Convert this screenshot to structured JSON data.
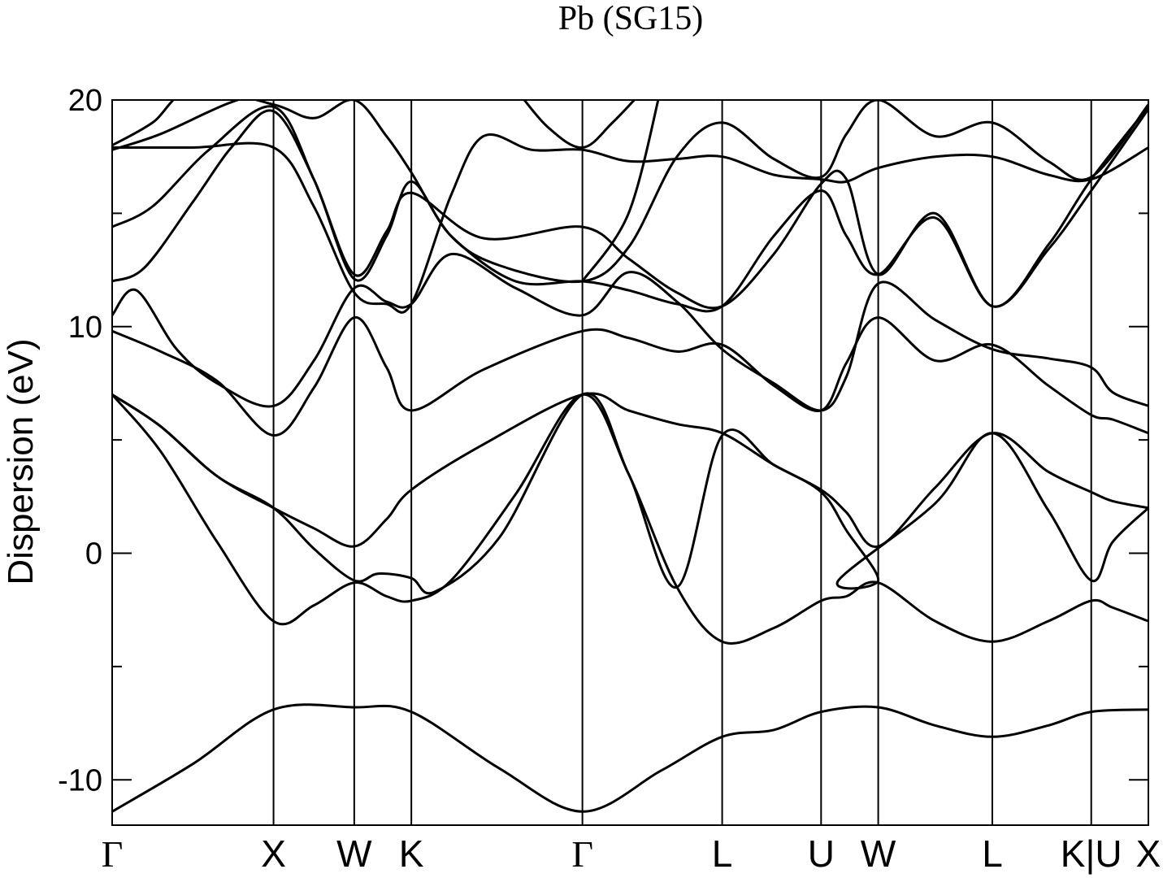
{
  "chart_data": {
    "type": "line",
    "title": "Pb (SG15)",
    "ylabel": "Dispersion (eV)",
    "xlabel": "",
    "ylim": [
      -12,
      20
    ],
    "yticks": [
      {
        "value": 20,
        "label": "20"
      },
      {
        "value": 10,
        "label": "10"
      },
      {
        "value": 0,
        "label": "0"
      },
      {
        "value": -10,
        "label": "-10"
      }
    ],
    "yminor_ticks": [
      15,
      5,
      -5
    ],
    "grid": false,
    "kpath": [
      {
        "label": "Γ",
        "pos": 0.0
      },
      {
        "label": "X",
        "pos": 1.0
      },
      {
        "label": "W",
        "pos": 1.5
      },
      {
        "label": "K",
        "pos": 1.854
      },
      {
        "label": "Γ",
        "pos": 2.914
      },
      {
        "label": "L",
        "pos": 3.78
      },
      {
        "label": "U",
        "pos": 4.393
      },
      {
        "label": "W",
        "pos": 4.747
      },
      {
        "label": "L",
        "pos": 5.454
      },
      {
        "label": "K|U",
        "pos": 6.067
      },
      {
        "label": "X",
        "pos": 6.421
      }
    ],
    "series": [
      {
        "values": [
          [
            0,
            -11.4
          ],
          [
            0.5,
            -9.3
          ],
          [
            1.0,
            -6.9
          ],
          [
            1.5,
            -6.8
          ],
          [
            1.854,
            -7.0
          ],
          [
            2.4,
            -9.5
          ],
          [
            2.914,
            -11.4
          ],
          [
            3.4,
            -9.6
          ],
          [
            3.78,
            -8.1
          ],
          [
            4.1,
            -7.8
          ],
          [
            4.393,
            -7.0
          ],
          [
            4.747,
            -6.8
          ],
          [
            5.1,
            -7.6
          ],
          [
            5.454,
            -8.1
          ],
          [
            5.8,
            -7.6
          ],
          [
            6.067,
            -7.0
          ],
          [
            6.421,
            -6.9
          ]
        ]
      },
      {
        "values": [
          [
            0,
            7.0
          ],
          [
            0.3,
            4.5
          ],
          [
            0.65,
            0.5
          ],
          [
            1.0,
            -3.0
          ],
          [
            1.25,
            -2.3
          ],
          [
            1.5,
            -1.3
          ],
          [
            1.7,
            -1.9
          ],
          [
            1.854,
            -2.1
          ],
          [
            2.1,
            -1.2
          ],
          [
            2.5,
            2.6
          ],
          [
            2.914,
            7.0
          ],
          [
            3.2,
            3.5
          ],
          [
            3.5,
            -1.5
          ],
          [
            3.78,
            -3.9
          ],
          [
            4.1,
            -3.3
          ],
          [
            4.393,
            -2.1
          ],
          [
            4.55,
            -1.9
          ],
          [
            4.747,
            -1.3
          ],
          [
            5.1,
            -3.0
          ],
          [
            5.454,
            -3.9
          ],
          [
            5.8,
            -3.0
          ],
          [
            6.067,
            -2.1
          ],
          [
            6.2,
            -2.4
          ],
          [
            6.421,
            -3.0
          ]
        ]
      },
      {
        "values": [
          [
            0,
            7.0
          ],
          [
            0.3,
            5.6
          ],
          [
            0.65,
            3.4
          ],
          [
            1.0,
            2.0
          ],
          [
            1.25,
            1.1
          ],
          [
            1.5,
            0.3
          ],
          [
            1.7,
            1.5
          ],
          [
            1.854,
            2.8
          ],
          [
            2.3,
            4.8
          ],
          [
            2.914,
            7.0
          ],
          [
            3.2,
            6.3
          ],
          [
            3.5,
            5.7
          ],
          [
            3.78,
            5.3
          ],
          [
            4.1,
            3.9
          ],
          [
            4.393,
            2.8
          ],
          [
            4.55,
            1.8
          ],
          [
            4.747,
            0.3
          ],
          [
            5.1,
            2.9
          ],
          [
            5.454,
            5.3
          ],
          [
            5.8,
            3.6
          ],
          [
            6.067,
            2.7
          ],
          [
            6.2,
            2.3
          ],
          [
            6.421,
            2.0
          ]
        ]
      },
      {
        "values": [
          [
            0,
            7.0
          ],
          [
            0.3,
            5.6
          ],
          [
            0.65,
            3.4
          ],
          [
            1.0,
            2.0
          ],
          [
            1.25,
            0.2
          ],
          [
            1.5,
            -1.2
          ],
          [
            1.65,
            -0.9
          ],
          [
            1.854,
            -1.1
          ],
          [
            2.0,
            -1.7
          ],
          [
            2.4,
            0.7
          ],
          [
            2.914,
            7.0
          ],
          [
            3.2,
            3.5
          ],
          [
            3.5,
            -1.5
          ],
          [
            3.78,
            5.2
          ],
          [
            4.1,
            3.9
          ],
          [
            4.393,
            2.7
          ],
          [
            4.55,
            1.0
          ],
          [
            4.747,
            -1.2
          ],
          [
            4.5,
            -1.2
          ],
          [
            5.1,
            2.2
          ],
          [
            5.454,
            5.3
          ],
          [
            5.8,
            1.9
          ],
          [
            6.067,
            -1.2
          ],
          [
            6.2,
            0.5
          ],
          [
            6.421,
            2.0
          ]
        ]
      },
      {
        "values": [
          [
            0,
            9.8
          ],
          [
            0.3,
            8.9
          ],
          [
            0.65,
            7.6
          ],
          [
            1.0,
            5.2
          ],
          [
            1.25,
            7.3
          ],
          [
            1.5,
            10.4
          ],
          [
            1.7,
            8.2
          ],
          [
            1.854,
            6.3
          ],
          [
            2.3,
            8.1
          ],
          [
            2.914,
            9.8
          ],
          [
            3.2,
            9.5
          ],
          [
            3.5,
            8.9
          ],
          [
            3.78,
            9.2
          ],
          [
            4.1,
            7.4
          ],
          [
            4.393,
            6.3
          ],
          [
            4.55,
            8.4
          ],
          [
            4.747,
            10.4
          ],
          [
            5.1,
            8.5
          ],
          [
            5.454,
            9.2
          ],
          [
            5.8,
            7.4
          ],
          [
            6.067,
            6.1
          ],
          [
            6.2,
            5.9
          ],
          [
            6.421,
            5.3
          ]
        ]
      },
      {
        "values": [
          [
            0,
            10.5
          ],
          [
            0.15,
            11.6
          ],
          [
            0.4,
            9.0
          ],
          [
            0.65,
            7.5
          ],
          [
            1.0,
            6.5
          ],
          [
            1.25,
            8.5
          ],
          [
            1.5,
            11.7
          ],
          [
            1.7,
            11.1
          ],
          [
            1.854,
            11.0
          ],
          [
            2.1,
            13.2
          ],
          [
            2.5,
            11.7
          ],
          [
            2.914,
            10.5
          ],
          [
            3.2,
            12.4
          ],
          [
            3.5,
            11.1
          ],
          [
            3.78,
            9.0
          ],
          [
            4.1,
            7.5
          ],
          [
            4.393,
            6.3
          ],
          [
            4.55,
            7.8
          ],
          [
            4.747,
            11.9
          ],
          [
            5.1,
            10.3
          ],
          [
            5.454,
            9.0
          ],
          [
            5.8,
            8.6
          ],
          [
            6.067,
            8.2
          ],
          [
            6.2,
            7.1
          ],
          [
            6.421,
            6.5
          ]
        ]
      },
      {
        "values": [
          [
            0,
            12.0
          ],
          [
            0.2,
            12.6
          ],
          [
            0.5,
            15.5
          ],
          [
            0.75,
            18.0
          ],
          [
            1.0,
            19.5
          ],
          [
            1.25,
            16.5
          ],
          [
            1.5,
            12.1
          ],
          [
            1.7,
            14.0
          ],
          [
            1.854,
            16.4
          ],
          [
            2.1,
            14.0
          ],
          [
            2.5,
            12.0
          ],
          [
            2.914,
            12.0
          ],
          [
            3.2,
            11.6
          ],
          [
            3.5,
            11.0
          ],
          [
            3.78,
            10.9
          ],
          [
            4.1,
            14.0
          ],
          [
            4.393,
            16.0
          ],
          [
            4.55,
            14.0
          ],
          [
            4.747,
            12.3
          ],
          [
            5.1,
            14.8
          ],
          [
            5.454,
            10.9
          ],
          [
            5.8,
            13.4
          ],
          [
            6.067,
            16.0
          ],
          [
            6.421,
            19.6
          ]
        ]
      },
      {
        "values": [
          [
            0,
            14.4
          ],
          [
            0.25,
            15.3
          ],
          [
            0.6,
            17.8
          ],
          [
            1.0,
            19.7
          ],
          [
            1.25,
            16.5
          ],
          [
            1.5,
            12.3
          ],
          [
            1.7,
            14.2
          ],
          [
            1.854,
            15.9
          ],
          [
            2.3,
            13.9
          ],
          [
            2.914,
            14.4
          ],
          [
            3.2,
            13.0
          ],
          [
            3.5,
            11.5
          ],
          [
            3.78,
            10.9
          ],
          [
            4.1,
            13.2
          ],
          [
            4.393,
            16.3
          ],
          [
            4.55,
            16.5
          ],
          [
            4.747,
            12.3
          ],
          [
            5.1,
            15.0
          ],
          [
            5.454,
            10.9
          ],
          [
            5.8,
            13.6
          ],
          [
            6.067,
            16.5
          ],
          [
            6.421,
            19.7
          ]
        ]
      },
      {
        "values": [
          [
            0,
            17.9
          ],
          [
            0.5,
            17.9
          ],
          [
            1.0,
            17.9
          ],
          [
            1.25,
            15.3
          ],
          [
            1.5,
            11.5
          ],
          [
            1.7,
            11.0
          ],
          [
            1.854,
            11.0
          ],
          [
            2.1,
            15.8
          ],
          [
            2.3,
            18.4
          ],
          [
            2.6,
            17.8
          ],
          [
            2.914,
            17.8
          ],
          [
            3.2,
            17.3
          ],
          [
            3.5,
            17.4
          ],
          [
            3.78,
            17.5
          ],
          [
            4.1,
            16.7
          ],
          [
            4.393,
            16.5
          ],
          [
            4.55,
            16.4
          ],
          [
            4.747,
            17.0
          ],
          [
            5.1,
            17.5
          ],
          [
            5.454,
            17.5
          ],
          [
            5.8,
            16.7
          ],
          [
            6.067,
            16.5
          ],
          [
            6.421,
            17.9
          ]
        ]
      },
      {
        "values": [
          [
            0,
            18.0
          ],
          [
            0.25,
            19.0
          ],
          [
            0.5,
            20.5
          ],
          [
            1.0,
            19.8
          ],
          [
            1.25,
            19.2
          ],
          [
            1.5,
            20.0
          ],
          [
            1.7,
            18.4
          ],
          [
            1.854,
            16.8
          ],
          [
            2.1,
            14.0
          ],
          [
            2.4,
            12.7
          ],
          [
            2.914,
            12.0
          ],
          [
            3.2,
            13.5
          ],
          [
            3.5,
            17.5
          ],
          [
            3.78,
            19.0
          ],
          [
            4.1,
            17.4
          ],
          [
            4.393,
            16.6
          ],
          [
            4.55,
            18.5
          ],
          [
            4.747,
            20.0
          ],
          [
            5.1,
            18.4
          ],
          [
            5.454,
            19.0
          ],
          [
            5.8,
            17.3
          ],
          [
            6.067,
            16.6
          ],
          [
            6.421,
            19.8
          ]
        ]
      },
      {
        "values": [
          [
            0,
            17.8
          ],
          [
            0.3,
            18.5
          ],
          [
            0.7,
            19.8
          ],
          [
            1.0,
            20.5
          ]
        ]
      },
      {
        "values": [
          [
            2.914,
            12.0
          ],
          [
            3.2,
            15.0
          ],
          [
            3.4,
            20.5
          ]
        ]
      },
      {
        "values": [
          [
            2.5,
            20.5
          ],
          [
            2.7,
            18.8
          ],
          [
            2.914,
            17.9
          ],
          [
            3.1,
            19.0
          ],
          [
            3.3,
            20.5
          ]
        ]
      }
    ]
  }
}
